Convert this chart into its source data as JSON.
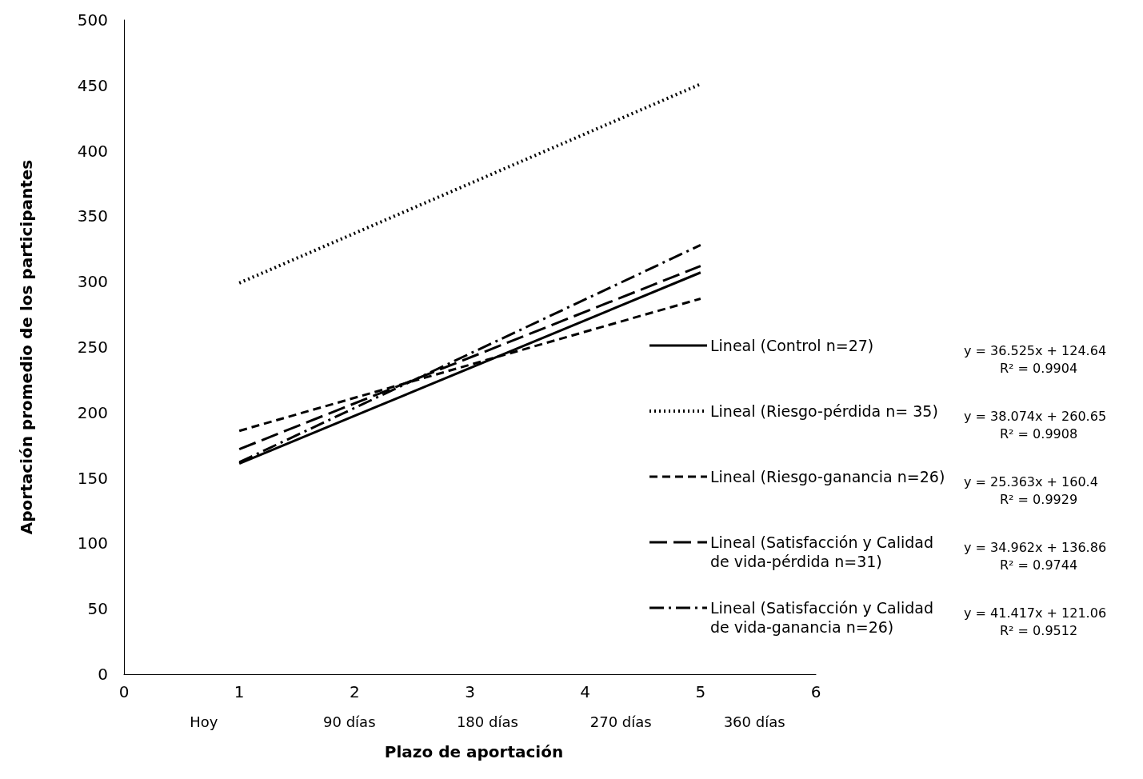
{
  "chart_data": {
    "type": "line",
    "xlabel": "Plazo de aportación",
    "ylabel": "Aportación promedio de los participantes",
    "xlim": [
      0,
      6
    ],
    "xticks": [
      0,
      1,
      2,
      3,
      4,
      5,
      6
    ],
    "ylim": [
      0,
      500
    ],
    "yticks": [
      0,
      50,
      100,
      150,
      200,
      250,
      300,
      350,
      400,
      450,
      500
    ],
    "grid": false,
    "legend": "right",
    "marker": "none",
    "x": [
      1,
      5
    ],
    "series": [
      {
        "name": "Lineal (Control n=27)",
        "color": "#000000",
        "line_style": "solid",
        "values": [
          161,
          307
        ]
      },
      {
        "name": "Lineal (Riesgo-pérdida n= 35)",
        "color": "#000000",
        "line_style": "dotted",
        "values": [
          299,
          451
        ]
      },
      {
        "name": "Lineal (Riesgo-ganancia n=26)",
        "color": "#000000",
        "line_style": "dashed",
        "values": [
          186,
          287
        ]
      },
      {
        "name": "Lineal (Satisfacción y Calidad de vida-pérdida n=31)",
        "color": "#000000",
        "line_style": "longdash",
        "values": [
          172,
          312
        ]
      },
      {
        "name": "Lineal (Satisfacción y Calidad de vida-ganancia n=26)",
        "color": "#000000",
        "line_style": "dashdot",
        "values": [
          162,
          328
        ]
      }
    ],
    "annotations": [
      "Hoy",
      "90 días",
      "180 días",
      "270 días",
      "360 días",
      "y = 36.525x + 124.64",
      "R² = 0.9904",
      "y = 38.074x + 260.65",
      "R² = 0.9908",
      "y = 25.363x + 160.4",
      "R² = 0.9929",
      "y = 34.962x + 136.86",
      "R² = 0.9744",
      "y = 41.417x + 121.06",
      "R² = 0.9512"
    ]
  }
}
